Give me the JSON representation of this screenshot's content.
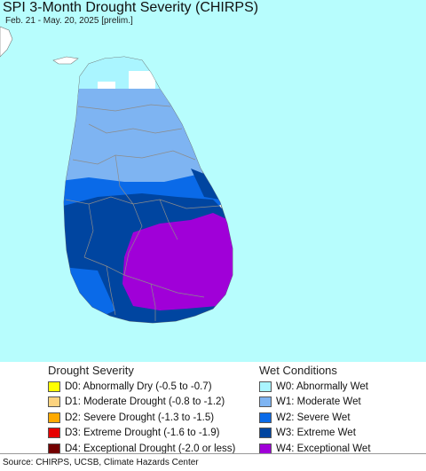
{
  "header": {
    "title": "SPI 3-Month Drought Severity (CHIRPS)",
    "subtitle": "Feb. 21 - May. 20, 2025 [prelim.]"
  },
  "map": {
    "ocean_color": "#b7fdfd",
    "land_background_color": "#ffffff",
    "boundary_color": "#8c8c8c"
  },
  "legend": {
    "drought": {
      "heading": "Drought Severity",
      "items": [
        {
          "label": "D0: Abnormally Dry (-0.5 to -0.7)",
          "color": "#ffff00"
        },
        {
          "label": "D1: Moderate Drought (-0.8 to -1.2)",
          "color": "#fcd37f"
        },
        {
          "label": "D2: Severe Drought (-1.3 to -1.5)",
          "color": "#ffaa00"
        },
        {
          "label": "D3: Extreme Drought (-1.6 to -1.9)",
          "color": "#e60000"
        },
        {
          "label": "D4: Exceptional Drought (-2.0 or less)",
          "color": "#730000"
        }
      ]
    },
    "wet": {
      "heading": "Wet Conditions",
      "items": [
        {
          "label": "W0: Abnormally Wet",
          "color": "#aaf5ff"
        },
        {
          "label": "W1: Moderate Wet",
          "color": "#7eb4f2"
        },
        {
          "label": "W2: Severe Wet",
          "color": "#0a6ae8"
        },
        {
          "label": "W3: Extreme Wet",
          "color": "#0045a0"
        },
        {
          "label": "W4: Exceptional Wet",
          "color": "#a000d8"
        }
      ]
    }
  },
  "footer": {
    "source": "Source: CHIRPS, UCSB, Climate Hazards Center"
  }
}
